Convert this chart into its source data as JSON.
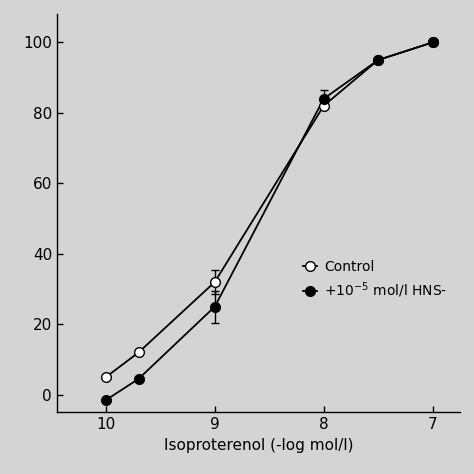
{
  "xlabel": "Isoproterenol (-log mol/l)",
  "ylabel": "",
  "background_color": "#d4d4d4",
  "plot_bg_color": "#d4d4d4",
  "x_ticks": [
    10,
    9,
    8,
    7
  ],
  "ylim": [
    -5,
    108
  ],
  "xlim": [
    10.45,
    6.75
  ],
  "yticks": [
    0,
    20,
    40,
    60,
    80,
    100
  ],
  "control_x": [
    10.0,
    9.7,
    9.0,
    8.0,
    7.5,
    7.0
  ],
  "control_y": [
    5.0,
    12.0,
    32.0,
    82.0,
    95.0,
    100.0
  ],
  "control_yerr": [
    0,
    0,
    3.5,
    0,
    0,
    0
  ],
  "hns_x": [
    10.0,
    9.7,
    9.0,
    8.0,
    7.5,
    7.0
  ],
  "hns_y": [
    -1.5,
    4.5,
    25.0,
    84.0,
    95.0,
    100.0
  ],
  "hns_yerr": [
    0,
    0,
    4.5,
    2.5,
    0,
    0
  ],
  "legend_labels": [
    "Control",
    "+10$^{-5}$ mol/l HNS-"
  ],
  "marker_size": 7,
  "line_width": 1.3,
  "font_size": 11,
  "tick_font_size": 11
}
